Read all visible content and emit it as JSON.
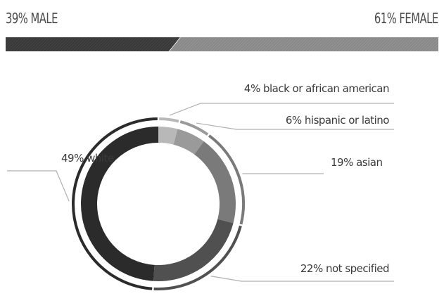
{
  "gender": {
    "male_label": "39% MALE",
    "female_label": "61% FEMALE",
    "male_pct": 39,
    "female_pct": 61,
    "male_color": "#3a3a3a",
    "female_color": "#8c8c8c"
  },
  "chart_data": {
    "type": "pie",
    "title": "",
    "slices": [
      {
        "label": "4% black or african american",
        "value": 4,
        "color": "#b8b8b8"
      },
      {
        "label": "6% hispanic or latino",
        "value": 6,
        "color": "#9a9a9a"
      },
      {
        "label": "19% asian",
        "value": 19,
        "color": "#7a7a7a"
      },
      {
        "label": "22% not specified",
        "value": 22,
        "color": "#505050"
      },
      {
        "label": "49% white",
        "value": 49,
        "color": "#2b2b2b"
      }
    ]
  }
}
